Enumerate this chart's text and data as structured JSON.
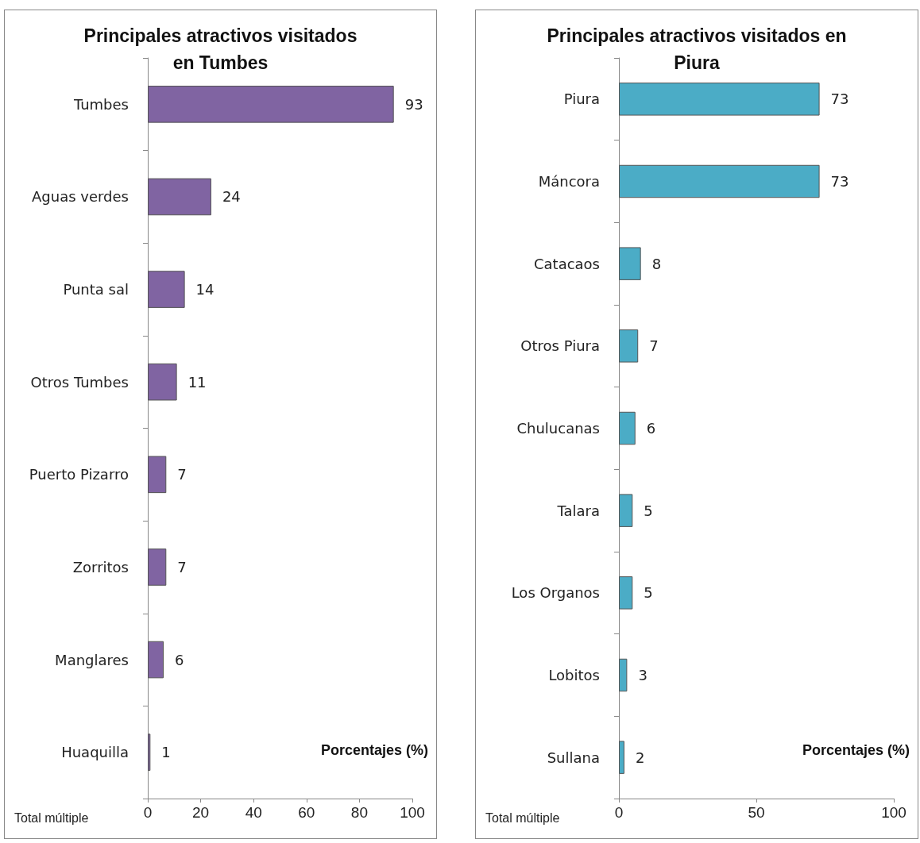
{
  "chart_data": [
    {
      "type": "bar",
      "orientation": "horizontal",
      "title": "Principales atractivos visitados\nen Tumbes",
      "xlabel": "Porcentajes (%)",
      "categories": [
        "Tumbes",
        "Aguas verdes",
        "Punta sal",
        "Otros Tumbes",
        "Puerto Pizarro",
        "Zorritos",
        "Manglares",
        "Huaquilla"
      ],
      "values": [
        93,
        24,
        14,
        11,
        7,
        7,
        6,
        1
      ],
      "color": "#8064a2",
      "xlim": [
        0,
        100
      ],
      "xticks": [
        0,
        20,
        40,
        60,
        80,
        100
      ],
      "data_labels": true,
      "grid": false,
      "annotations": [
        "Total múltiple"
      ]
    },
    {
      "type": "bar",
      "orientation": "horizontal",
      "title": "Principales atractivos visitados en\nPiura",
      "xlabel": "Porcentajes (%)",
      "categories": [
        "Piura",
        "Máncora",
        "Catacaos",
        "Otros Piura",
        "Chulucanas",
        "Talara",
        "Los Organos",
        "Lobitos",
        "Sullana"
      ],
      "values": [
        73,
        73,
        8,
        7,
        6,
        5,
        5,
        3,
        2
      ],
      "color": "#4bacc6",
      "xlim": [
        0,
        100
      ],
      "xticks": [
        0,
        50,
        100
      ],
      "data_labels": true,
      "grid": false,
      "annotations": [
        "Total múltiple"
      ]
    }
  ]
}
